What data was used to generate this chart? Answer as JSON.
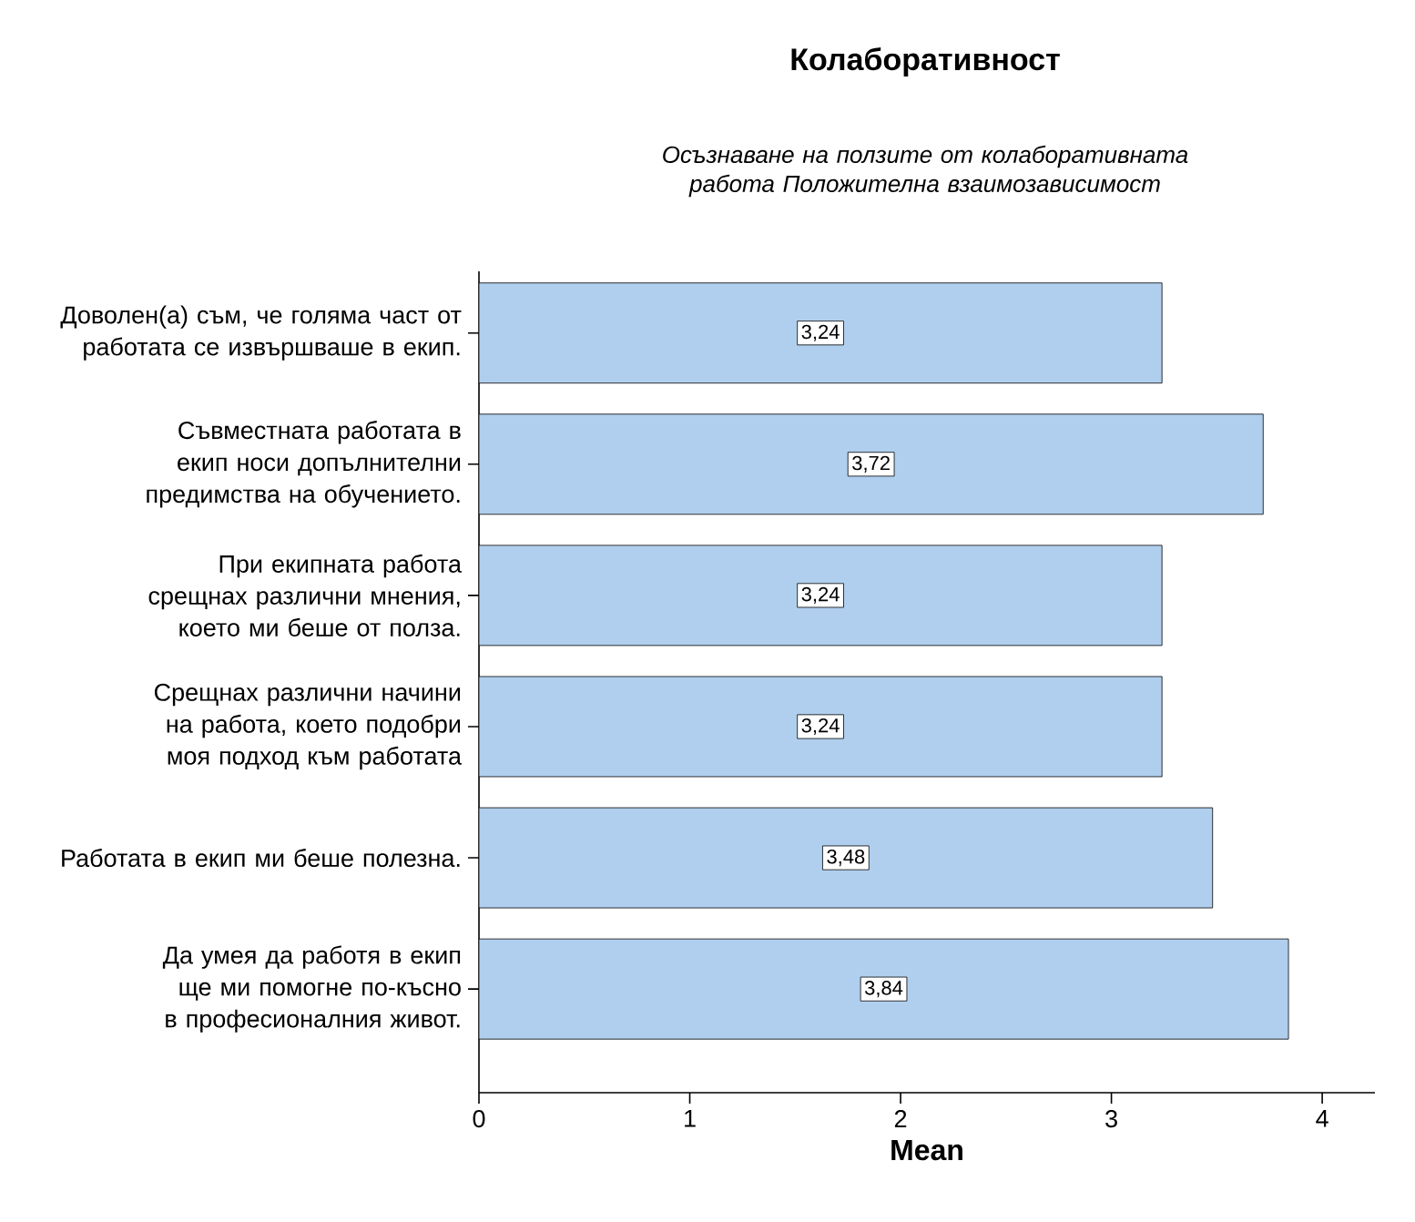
{
  "chart_data": {
    "type": "bar",
    "orientation": "horizontal",
    "title": "Колаборативност",
    "subtitle": "Осъзнаване на ползите от колаборативната работа Положителна взаимозависимост",
    "xlabel": "Mean",
    "categories": [
      "Доволен(а) съм, че голяма част от работата се извършваше в екип.",
      "Съвместната работата в екип носи допълнителни предимства на обучението.",
      "При екипната работа срещнах различни мнения, което ми беше от полза.",
      "Срещнах различни начини на работа, което подобри моя подход към работата",
      "Работата в екип ми беше полезна.",
      "Да умея да работя в екип ще ми помогне по-късно в професионалния живот."
    ],
    "values": [
      3.24,
      3.72,
      3.24,
      3.24,
      3.48,
      3.84
    ],
    "value_labels": [
      "3,24",
      "3,72",
      "3,24",
      "3,24",
      "3,48",
      "3,84"
    ],
    "color": "#b0cfee",
    "xlim": [
      0,
      4.25
    ],
    "xticks": [
      0,
      1,
      2,
      3,
      4
    ],
    "grid": false
  }
}
